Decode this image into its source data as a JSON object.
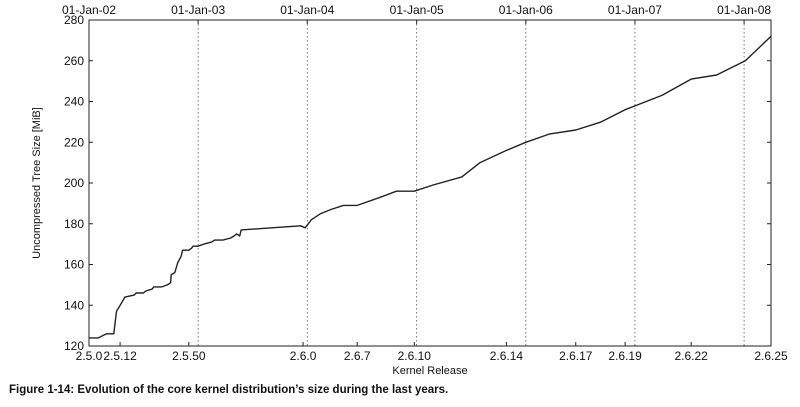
{
  "chart_data": {
    "type": "line",
    "title": "",
    "xlabel": "Kernel Release",
    "ylabel": "Uncompressed Tree Size [MiB]",
    "ylim": [
      120,
      280
    ],
    "yticks": [
      120,
      140,
      160,
      180,
      200,
      220,
      240,
      260,
      280
    ],
    "xlim": [
      "2002-01-01",
      "2008-03-31"
    ],
    "x_ticks_bottom": [
      {
        "label": "2.5.0",
        "date": "2002-01-01"
      },
      {
        "label": "2.5.12",
        "date": "2002-04-15"
      },
      {
        "label": "2.5.50",
        "date": "2002-12-01"
      },
      {
        "label": "2.6.0",
        "date": "2003-12-18"
      },
      {
        "label": "2.6.7",
        "date": "2004-06-16"
      },
      {
        "label": "2.6.10",
        "date": "2004-12-24"
      },
      {
        "label": "2.6.14",
        "date": "2005-10-28"
      },
      {
        "label": "2.6.17",
        "date": "2006-06-17"
      },
      {
        "label": "2.6.19",
        "date": "2006-11-29"
      },
      {
        "label": "2.6.22",
        "date": "2007-07-08"
      },
      {
        "label": "2.6.25",
        "date": "2008-03-31"
      }
    ],
    "x_ticks_top": [
      {
        "label": "01-Jan-02",
        "date": "2002-01-01"
      },
      {
        "label": "01-Jan-03",
        "date": "2003-01-01"
      },
      {
        "label": "01-Jan-04",
        "date": "2004-01-01"
      },
      {
        "label": "01-Jan-05",
        "date": "2005-01-01"
      },
      {
        "label": "01-Jan-06",
        "date": "2006-01-01"
      },
      {
        "label": "01-Jan-07",
        "date": "2007-01-01"
      },
      {
        "label": "01-Jan-08",
        "date": "2008-01-01"
      }
    ],
    "grid": "vertical dotted at top-axis dates",
    "series": [
      {
        "name": "",
        "color": "#222222",
        "points": [
          [
            "2002-01-01",
            124
          ],
          [
            "2002-02-01",
            124
          ],
          [
            "2002-03-01",
            126
          ],
          [
            "2002-03-25",
            126
          ],
          [
            "2002-04-03",
            137
          ],
          [
            "2002-04-15",
            140
          ],
          [
            "2002-05-01",
            144
          ],
          [
            "2002-06-01",
            145
          ],
          [
            "2002-06-08",
            146
          ],
          [
            "2002-07-01",
            146
          ],
          [
            "2002-07-10",
            147
          ],
          [
            "2002-08-01",
            148
          ],
          [
            "2002-08-05",
            149
          ],
          [
            "2002-09-01",
            149
          ],
          [
            "2002-09-20",
            150
          ],
          [
            "2002-10-01",
            151
          ],
          [
            "2002-10-03",
            155
          ],
          [
            "2002-10-15",
            156
          ],
          [
            "2002-10-25",
            161
          ],
          [
            "2002-11-05",
            164
          ],
          [
            "2002-11-10",
            167
          ],
          [
            "2002-11-20",
            167
          ],
          [
            "2002-12-01",
            167
          ],
          [
            "2002-12-10",
            168
          ],
          [
            "2002-12-15",
            169
          ],
          [
            "2003-01-01",
            169
          ],
          [
            "2003-01-20",
            170
          ],
          [
            "2003-02-15",
            171
          ],
          [
            "2003-02-25",
            172
          ],
          [
            "2003-03-25",
            172
          ],
          [
            "2003-04-20",
            173
          ],
          [
            "2003-05-01",
            174
          ],
          [
            "2003-05-10",
            175
          ],
          [
            "2003-05-20",
            174
          ],
          [
            "2003-05-25",
            177
          ],
          [
            "2003-12-10",
            179
          ],
          [
            "2003-12-25",
            178
          ],
          [
            "2004-01-15",
            182
          ],
          [
            "2004-02-15",
            185
          ],
          [
            "2004-03-20",
            187
          ],
          [
            "2004-05-01",
            189
          ],
          [
            "2004-06-16",
            189
          ],
          [
            "2004-09-01",
            193
          ],
          [
            "2004-10-25",
            196
          ],
          [
            "2004-12-24",
            196
          ],
          [
            "2005-02-25",
            199
          ],
          [
            "2005-06-01",
            203
          ],
          [
            "2005-08-01",
            210
          ],
          [
            "2005-10-28",
            216
          ],
          [
            "2006-01-01",
            220
          ],
          [
            "2006-03-20",
            224
          ],
          [
            "2006-06-17",
            226
          ],
          [
            "2006-09-10",
            230
          ],
          [
            "2006-11-29",
            236
          ],
          [
            "2007-04-01",
            243
          ],
          [
            "2007-07-08",
            251
          ],
          [
            "2007-10-01",
            253
          ],
          [
            "2008-01-05",
            260
          ],
          [
            "2008-03-31",
            272
          ]
        ]
      }
    ]
  },
  "caption": "Figure 1-14: Evolution of the core kernel distribution’s size during the last years."
}
